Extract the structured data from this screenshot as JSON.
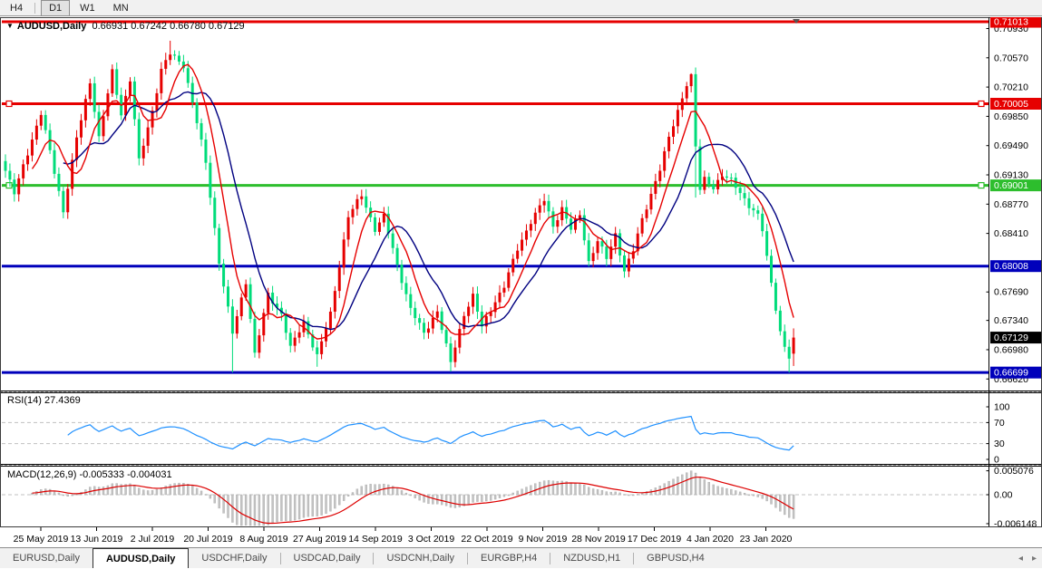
{
  "toolbar": {
    "buttons": [
      {
        "label": "H4",
        "active": false
      },
      {
        "label": "D1",
        "active": true
      },
      {
        "label": "W1",
        "active": false
      },
      {
        "label": "MN",
        "active": false
      }
    ]
  },
  "header": {
    "dropdown_icon": "▼",
    "symbol_label": "AUDUSD,Daily",
    "ohlc_text": "0.66931 0.67242 0.66780 0.67129"
  },
  "price_axis": {
    "plain_labels": [
      "0.70930",
      "0.70570",
      "0.70210",
      "0.69850",
      "0.69490",
      "0.69130",
      "0.68770",
      "0.68410",
      "0.67690",
      "0.67340",
      "0.66980",
      "0.66620"
    ],
    "badges": [
      {
        "text": "0.71013",
        "bg": "#e60000"
      },
      {
        "text": "0.70005",
        "bg": "#e60000"
      },
      {
        "text": "0.69001",
        "bg": "#2dbe2d"
      },
      {
        "text": "0.68008",
        "bg": "#0000bb"
      },
      {
        "text": "0.67129",
        "bg": "#000000"
      },
      {
        "text": "0.66699",
        "bg": "#0000bb"
      }
    ]
  },
  "rsi_panel": {
    "label": "RSI(14) 27.4369",
    "axis_labels": [
      "100",
      "70",
      "30",
      "0"
    ]
  },
  "macd_panel": {
    "label": "MACD(12,26,9) -0.005333 -0.004031",
    "axis_labels": [
      "0.005076",
      "0.00",
      "-0.006148"
    ]
  },
  "date_axis": {
    "labels": [
      "25 May 2019",
      "13 Jun 2019",
      "2 Jul 2019",
      "20 Jul 2019",
      "8 Aug 2019",
      "27 Aug 2019",
      "14 Sep 2019",
      "3 Oct 2019",
      "22 Oct 2019",
      "9 Nov 2019",
      "28 Nov 2019",
      "17 Dec 2019",
      "4 Jan 2020",
      "23 Jan 2020"
    ]
  },
  "tabs": {
    "items": [
      {
        "label": "EURUSD,Daily",
        "active": false
      },
      {
        "label": "AUDUSD,Daily",
        "active": true
      },
      {
        "label": "USDCHF,Daily",
        "active": false
      },
      {
        "label": "USDCAD,Daily",
        "active": false
      },
      {
        "label": "USDCNH,Daily",
        "active": false
      },
      {
        "label": "EURGBP,H4",
        "active": false
      },
      {
        "label": "NZDUSD,H1",
        "active": false
      },
      {
        "label": "GBPUSD,H4",
        "active": false
      }
    ],
    "scroll_left": "◂",
    "scroll_right": "▸"
  },
  "chart_data": {
    "type": "candlestick",
    "symbol": "AUDUSD",
    "timeframe": "Daily",
    "n_candles": 178,
    "last_candle": {
      "open": 0.66931,
      "high": 0.67242,
      "low": 0.6678,
      "close": 0.67129
    },
    "price_scale": {
      "max": 0.71058,
      "min": 0.66478
    },
    "bull_color": "#e60000",
    "bear_color": "#00dc7a",
    "close_anchors": [
      [
        0,
        0.6918
      ],
      [
        2,
        0.689
      ],
      [
        4,
        0.6925
      ],
      [
        8,
        0.6988
      ],
      [
        10,
        0.6942
      ],
      [
        13,
        0.6868
      ],
      [
        16,
        0.6958
      ],
      [
        19,
        0.7028
      ],
      [
        21,
        0.6958
      ],
      [
        24,
        0.704
      ],
      [
        26,
        0.6988
      ],
      [
        28,
        0.703
      ],
      [
        30,
        0.693
      ],
      [
        33,
        0.6992
      ],
      [
        35,
        0.7042
      ],
      [
        37,
        0.7062
      ],
      [
        40,
        0.7048
      ],
      [
        42,
        0.7002
      ],
      [
        45,
        0.6928
      ],
      [
        48,
        0.6806
      ],
      [
        51,
        0.6718
      ],
      [
        54,
        0.6782
      ],
      [
        56,
        0.6692
      ],
      [
        59,
        0.6766
      ],
      [
        62,
        0.6742
      ],
      [
        64,
        0.67
      ],
      [
        67,
        0.6732
      ],
      [
        70,
        0.669
      ],
      [
        73,
        0.6742
      ],
      [
        77,
        0.6862
      ],
      [
        80,
        0.6888
      ],
      [
        83,
        0.6846
      ],
      [
        85,
        0.6862
      ],
      [
        88,
        0.6802
      ],
      [
        91,
        0.6748
      ],
      [
        94,
        0.6718
      ],
      [
        97,
        0.6746
      ],
      [
        99,
        0.6702
      ],
      [
        100,
        0.6682
      ],
      [
        103,
        0.6742
      ],
      [
        105,
        0.6764
      ],
      [
        107,
        0.6726
      ],
      [
        110,
        0.6758
      ],
      [
        112,
        0.6776
      ],
      [
        115,
        0.6822
      ],
      [
        118,
        0.6856
      ],
      [
        121,
        0.6882
      ],
      [
        123,
        0.685
      ],
      [
        125,
        0.6872
      ],
      [
        127,
        0.6846
      ],
      [
        129,
        0.6864
      ],
      [
        131,
        0.6806
      ],
      [
        133,
        0.6832
      ],
      [
        135,
        0.681
      ],
      [
        137,
        0.684
      ],
      [
        139,
        0.6795
      ],
      [
        141,
        0.682
      ],
      [
        143,
        0.6858
      ],
      [
        145,
        0.689
      ],
      [
        147,
        0.692
      ],
      [
        149,
        0.6958
      ],
      [
        151,
        0.6992
      ],
      [
        153,
        0.7025
      ],
      [
        154,
        0.7034
      ],
      [
        155,
        0.6947
      ],
      [
        156,
        0.6895
      ],
      [
        157,
        0.6908
      ],
      [
        159,
        0.6898
      ],
      [
        161,
        0.6912
      ],
      [
        163,
        0.6906
      ],
      [
        165,
        0.6892
      ],
      [
        167,
        0.6875
      ],
      [
        169,
        0.6862
      ],
      [
        170,
        0.6845
      ],
      [
        172,
        0.678
      ],
      [
        174,
        0.672
      ],
      [
        175,
        0.67
      ],
      [
        176,
        0.6688
      ],
      [
        177,
        0.67129
      ]
    ],
    "wick_overrides": [
      [
        37,
        "high",
        0.7078
      ],
      [
        51,
        "low",
        0.667
      ],
      [
        70,
        "low",
        0.6677
      ],
      [
        100,
        "low",
        0.6671
      ],
      [
        154,
        "high",
        0.7038
      ],
      [
        155,
        "low",
        0.6885
      ],
      [
        176,
        "low",
        0.66699
      ]
    ],
    "levels": [
      {
        "price": 0.71013,
        "color": "#e60000",
        "handles": false
      },
      {
        "price": 0.70005,
        "color": "#e60000",
        "handles": true
      },
      {
        "price": 0.69001,
        "color": "#2dbe2d",
        "handles": true
      },
      {
        "price": 0.68008,
        "color": "#0000bb",
        "handles": false
      },
      {
        "price": 0.66699,
        "color": "#0000bb",
        "handles": false
      }
    ],
    "current_price": 0.67129,
    "indicators": {
      "ma_fast": {
        "type": "SMA",
        "period": 7,
        "color": "#e60000"
      },
      "ma_slow": {
        "type": "SMA",
        "period": 14,
        "color": "#000080"
      },
      "rsi": {
        "period": 14,
        "value": 27.4369,
        "color": "#1e90ff",
        "dashed_levels": [
          70,
          30
        ],
        "range": [
          0,
          100
        ]
      },
      "macd": {
        "fast": 12,
        "slow": 26,
        "signal": 9,
        "value": -0.005333,
        "signal_value": -0.004031,
        "hist_color": "#c3c3c3",
        "signal_color": "#dd0000",
        "axis_max": 0.005076,
        "axis_min": -0.006148
      }
    }
  }
}
